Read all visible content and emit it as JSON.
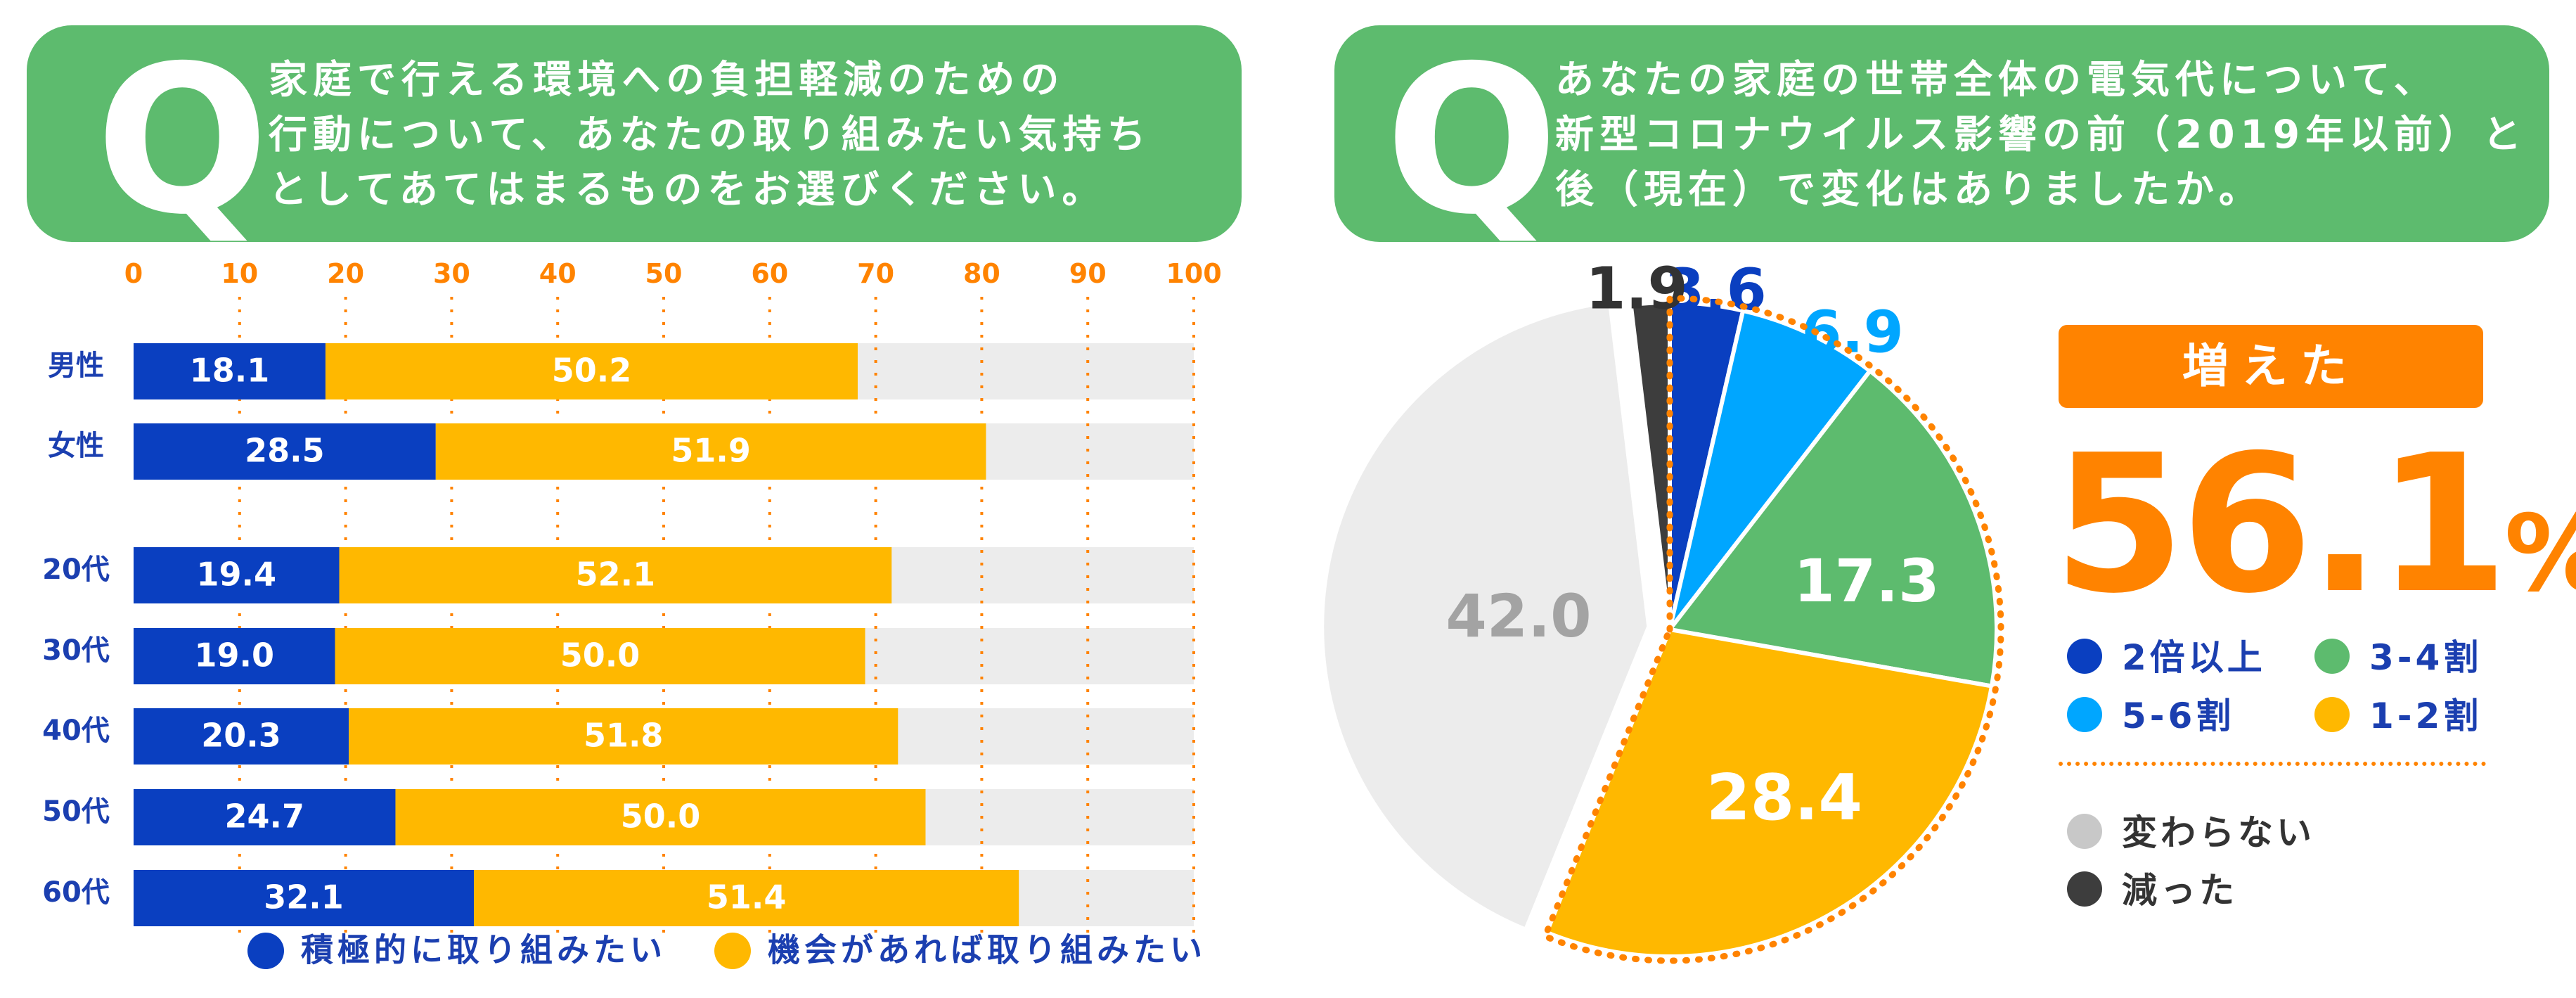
{
  "q1": {
    "mark": "Q",
    "lines": [
      "家庭で行える環境への負担軽減のための",
      "行動について、あなたの取り組みたい気持ち",
      "としてあてはまるものをお選びください。"
    ]
  },
  "q2": {
    "mark": "Q",
    "lines": [
      "あなたの家庭の世帯全体の電気代について、",
      "新型コロナウイルス影響の前（2019年以前）と",
      "後（現在）で変化はありましたか。"
    ]
  },
  "colors": {
    "green": "#5dbb6e",
    "blue_dark": "#0a3fc0",
    "yellow": "#ffb800",
    "orange": "#ff8300",
    "light_blue": "#00a6ff",
    "gray_light": "#ececec",
    "gray_dark": "#3d3d3d"
  },
  "chart_data": [
    {
      "type": "bar",
      "orientation": "horizontal",
      "stacked": true,
      "categories": [
        "男性",
        "女性",
        "20代",
        "30代",
        "40代",
        "50代",
        "60代"
      ],
      "series": [
        {
          "name": "積極的に取り組みたい",
          "color": "#0a3fc0",
          "values": [
            18.1,
            28.5,
            19.4,
            19.0,
            20.3,
            24.7,
            32.1
          ]
        },
        {
          "name": "機会があれば取り組みたい",
          "color": "#ffb800",
          "values": [
            50.2,
            51.9,
            52.1,
            50.0,
            51.8,
            50.0,
            51.4
          ]
        }
      ],
      "value_labels": [
        [
          "18.1",
          "28.5",
          "19.4",
          "19.0",
          "20.3",
          "24.7",
          "32.1"
        ],
        [
          "50.2",
          "51.9",
          "52.1",
          "50.0",
          "51.8",
          "50.0",
          "51.4"
        ]
      ],
      "xlim": [
        0,
        100
      ],
      "xticks": [
        "0",
        "10",
        "20",
        "30",
        "40",
        "50",
        "60",
        "70",
        "80",
        "90",
        "100"
      ],
      "legend": "bottom"
    },
    {
      "type": "pie",
      "slices": [
        {
          "name": "2倍以上",
          "value": 3.6,
          "label": "3.6",
          "color": "#0a3fc0"
        },
        {
          "name": "5-6割",
          "value": 6.9,
          "label": "6.9",
          "color": "#00a6ff"
        },
        {
          "name": "3-4割",
          "value": 17.3,
          "label": "17.3",
          "color": "#5dbb6e"
        },
        {
          "name": "1-2割",
          "value": 28.4,
          "label": "28.4",
          "color": "#ffb800"
        },
        {
          "name": "変わらない",
          "value": 42.0,
          "label": "42.0",
          "color": "#ececec"
        },
        {
          "name": "減った",
          "value": 1.9,
          "label": "1.9",
          "color": "#3d3d3d"
        }
      ],
      "summary": {
        "badge": "増えた",
        "value": "56.1",
        "unit": "%"
      },
      "legend": "right"
    }
  ]
}
